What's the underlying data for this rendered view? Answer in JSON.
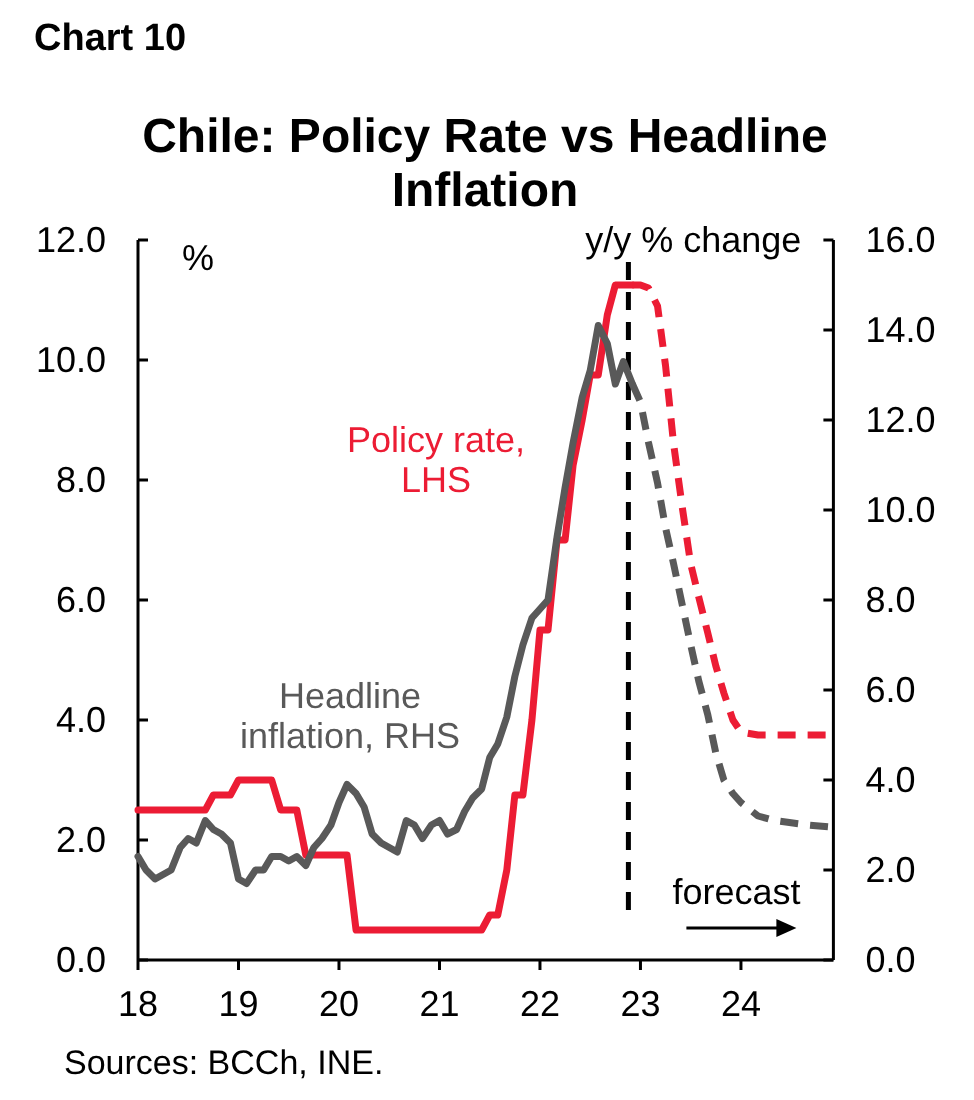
{
  "chart_data": {
    "type": "line",
    "title": "Chile: Policy Rate vs Headline Inflation",
    "ylabel": "%",
    "y2label": "y/y % change",
    "annotations": [
      "Chart 10",
      "Sources: BCCh, INE."
    ],
    "xlim": [
      18,
      24.92
    ],
    "xticks": [
      18,
      19,
      20,
      21,
      22,
      23,
      24
    ],
    "ylim": [
      0,
      12
    ],
    "yticks": [
      {
        "value": 0,
        "label": "0.0"
      },
      {
        "value": 2,
        "label": "2.0"
      },
      {
        "value": 4,
        "label": "4.0"
      },
      {
        "value": 6,
        "label": "6.0"
      },
      {
        "value": 8,
        "label": "8.0"
      },
      {
        "value": 10,
        "label": "10.0"
      },
      {
        "value": 12,
        "label": "12.0"
      }
    ],
    "y2lim": [
      0,
      16
    ],
    "y2ticks": [
      {
        "value": 0,
        "label": "0.0"
      },
      {
        "value": 2,
        "label": "2.0"
      },
      {
        "value": 4,
        "label": "4.0"
      },
      {
        "value": 6,
        "label": "6.0"
      },
      {
        "value": 8,
        "label": "8.0"
      },
      {
        "value": 10,
        "label": "10.0"
      },
      {
        "value": 12,
        "label": "12.0"
      },
      {
        "value": 14,
        "label": "14.0"
      },
      {
        "value": 16,
        "label": "16.0"
      }
    ],
    "ref_lines": [
      {
        "axis": "x",
        "value": 22.88,
        "label": "forecast",
        "color": "#000000",
        "line_style": "dashed"
      }
    ],
    "series": [
      {
        "name": "Policy rate, LHS",
        "color": "#ec1c34",
        "x": [
          18,
          18.67,
          18.75,
          18.92,
          19,
          19.33,
          19.42,
          19.58,
          19.67,
          20.08,
          20.17,
          21.42,
          21.5,
          21.58,
          21.67,
          21.75,
          21.83,
          21.92,
          22,
          22.08,
          22.17,
          22.25,
          22.33,
          22.42,
          22.5,
          22.58,
          22.67,
          22.75,
          22.92
        ],
        "values": [
          2.5,
          2.5,
          2.75,
          2.75,
          3.0,
          3.0,
          2.5,
          2.5,
          1.75,
          1.75,
          0.5,
          0.5,
          0.75,
          0.75,
          1.5,
          2.75,
          2.75,
          4.0,
          5.5,
          5.5,
          7.0,
          7.0,
          8.25,
          9.0,
          9.75,
          9.75,
          10.75,
          11.25,
          11.25
        ]
      },
      {
        "name": "Headline inflation, RHS",
        "color": "#595959",
        "axis": "y2",
        "x": [
          18,
          18.08,
          18.17,
          18.25,
          18.33,
          18.42,
          18.5,
          18.58,
          18.67,
          18.75,
          18.83,
          18.92,
          19,
          19.08,
          19.17,
          19.25,
          19.33,
          19.42,
          19.5,
          19.58,
          19.67,
          19.75,
          19.83,
          19.92,
          20,
          20.08,
          20.17,
          20.25,
          20.33,
          20.42,
          20.5,
          20.58,
          20.67,
          20.75,
          20.83,
          20.92,
          21,
          21.08,
          21.17,
          21.25,
          21.33,
          21.42,
          21.5,
          21.58,
          21.67,
          21.75,
          21.83,
          21.92,
          22,
          22.08,
          22.17,
          22.25,
          22.33,
          22.42,
          22.5,
          22.58,
          22.67,
          22.75,
          22.83,
          22.92
        ],
        "values": [
          2.3,
          2.0,
          1.8,
          1.9,
          2.0,
          2.5,
          2.7,
          2.6,
          3.1,
          2.9,
          2.8,
          2.6,
          1.8,
          1.7,
          2.0,
          2.0,
          2.3,
          2.3,
          2.2,
          2.3,
          2.1,
          2.5,
          2.7,
          3.0,
          3.5,
          3.9,
          3.7,
          3.4,
          2.8,
          2.6,
          2.5,
          2.4,
          3.1,
          3.0,
          2.7,
          3.0,
          3.1,
          2.8,
          2.9,
          3.3,
          3.6,
          3.8,
          4.5,
          4.8,
          5.4,
          6.3,
          7.0,
          7.6,
          7.8,
          8.0,
          9.4,
          10.5,
          11.5,
          12.5,
          13.1,
          14.1,
          13.7,
          12.8,
          13.3,
          12.8
        ]
      },
      {
        "color": "#ec1c34",
        "line_style": "dashed",
        "x": [
          22.92,
          23,
          23.08,
          23.17,
          23.25,
          23.33,
          23.42,
          23.5,
          23.58,
          23.67,
          23.75,
          23.83,
          23.92,
          24,
          24.17,
          24.92
        ],
        "values": [
          11.25,
          11.25,
          11.2,
          10.9,
          9.9,
          8.6,
          7.5,
          6.6,
          6.05,
          5.45,
          4.9,
          4.45,
          4.0,
          3.8,
          3.75,
          3.75
        ]
      },
      {
        "color": "#595959",
        "axis": "y2",
        "line_style": "dashed",
        "x": [
          22.92,
          23,
          23.08,
          23.17,
          23.25,
          23.33,
          23.42,
          23.5,
          23.58,
          23.67,
          23.75,
          23.83,
          23.92,
          24,
          24.17,
          24.33,
          24.5,
          24.67,
          24.92
        ],
        "values": [
          12.8,
          12.4,
          11.5,
          10.6,
          9.6,
          8.8,
          7.85,
          7.0,
          6.2,
          5.45,
          4.6,
          4.0,
          3.7,
          3.5,
          3.2,
          3.1,
          3.05,
          3.0,
          2.95
        ]
      }
    ]
  }
}
